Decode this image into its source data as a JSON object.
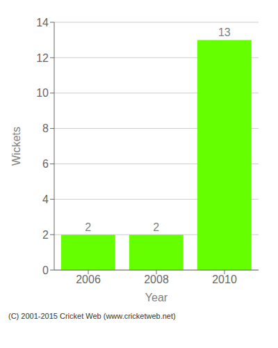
{
  "chart_data": {
    "type": "bar",
    "categories": [
      "2006",
      "2008",
      "2010"
    ],
    "values": [
      2,
      2,
      13
    ],
    "color": "#66ff00",
    "xlabel": "Year",
    "ylabel": "Wickets",
    "ylim": [
      0,
      14
    ],
    "yticks": [
      0,
      2,
      4,
      6,
      8,
      10,
      12,
      14
    ],
    "grid": true,
    "data_labels": true,
    "annotations": [
      "(C) 2001-2015 Cricket Web (www.cricketweb.net)"
    ]
  }
}
